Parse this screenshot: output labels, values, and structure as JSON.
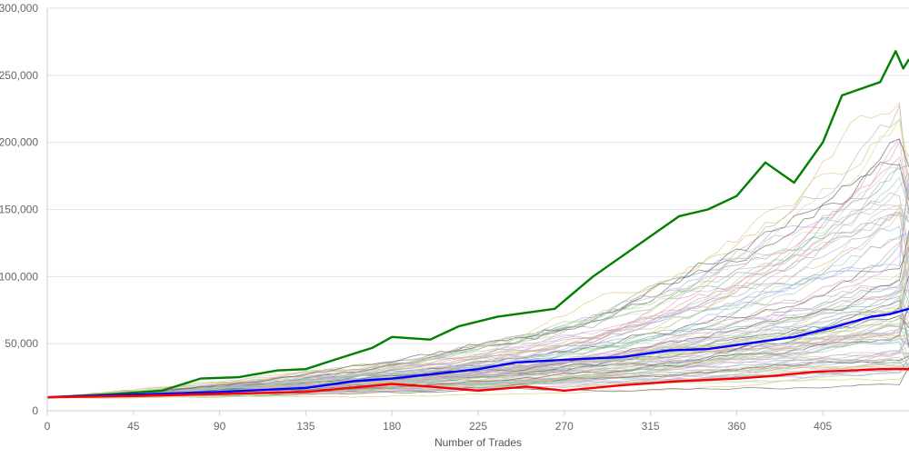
{
  "chart_data": {
    "type": "line",
    "title": "",
    "xlabel": "Number of Trades",
    "ylabel": "",
    "xlim": [
      0,
      450
    ],
    "ylim": [
      0,
      300000
    ],
    "x_ticks": [
      0,
      45,
      90,
      135,
      180,
      225,
      270,
      315,
      360,
      405
    ],
    "x_tick_labels": [
      "0",
      "45",
      "90",
      "135",
      "180",
      "225",
      "270",
      "315",
      "360",
      "405"
    ],
    "y_ticks": [
      0,
      50000,
      100000,
      150000,
      200000,
      250000,
      300000
    ],
    "y_tick_labels": [
      "0",
      "50,000",
      "100,000",
      "150,000",
      "200,000",
      "250,000",
      "300,000"
    ],
    "grid": true,
    "legend": "none",
    "background_paths": {
      "count": 100,
      "start_value": 10000,
      "end_value_range": [
        30000,
        190000
      ],
      "colors": [
        "#b0b0b0",
        "#d9a0d9",
        "#a0d0a0",
        "#a0b0e0",
        "#e0c080",
        "#c0c0c0",
        "#80b0b0",
        "#e0a0a0",
        "#606060",
        "#c8e0a0"
      ]
    },
    "series": [
      {
        "role": "best",
        "color": "#008000",
        "points": [
          [
            0,
            10000
          ],
          [
            30,
            12000
          ],
          [
            60,
            15000
          ],
          [
            80,
            24000
          ],
          [
            100,
            25000
          ],
          [
            120,
            30000
          ],
          [
            135,
            31000
          ],
          [
            150,
            38000
          ],
          [
            170,
            47000
          ],
          [
            180,
            55000
          ],
          [
            200,
            53000
          ],
          [
            215,
            63000
          ],
          [
            235,
            70000
          ],
          [
            265,
            76000
          ],
          [
            285,
            100000
          ],
          [
            300,
            115000
          ],
          [
            315,
            130000
          ],
          [
            330,
            145000
          ],
          [
            345,
            150000
          ],
          [
            360,
            160000
          ],
          [
            375,
            185000
          ],
          [
            390,
            170000
          ],
          [
            405,
            200000
          ],
          [
            415,
            235000
          ],
          [
            425,
            240000
          ],
          [
            435,
            245000
          ],
          [
            443,
            268000
          ],
          [
            447,
            255000
          ],
          [
            450,
            262000
          ]
        ]
      },
      {
        "role": "median",
        "color": "#0000ff",
        "points": [
          [
            0,
            10000
          ],
          [
            45,
            12000
          ],
          [
            90,
            14000
          ],
          [
            135,
            17000
          ],
          [
            160,
            22000
          ],
          [
            180,
            24000
          ],
          [
            200,
            27000
          ],
          [
            225,
            31000
          ],
          [
            245,
            36000
          ],
          [
            270,
            38000
          ],
          [
            300,
            40000
          ],
          [
            325,
            45000
          ],
          [
            345,
            46000
          ],
          [
            365,
            50000
          ],
          [
            390,
            55000
          ],
          [
            410,
            62000
          ],
          [
            430,
            70000
          ],
          [
            440,
            72000
          ],
          [
            450,
            76000
          ]
        ]
      },
      {
        "role": "worst",
        "color": "#ff0000",
        "points": [
          [
            0,
            10000
          ],
          [
            45,
            11000
          ],
          [
            90,
            12500
          ],
          [
            135,
            14000
          ],
          [
            150,
            16000
          ],
          [
            180,
            20000
          ],
          [
            200,
            18000
          ],
          [
            225,
            15000
          ],
          [
            250,
            18000
          ],
          [
            270,
            15000
          ],
          [
            300,
            19000
          ],
          [
            330,
            22000
          ],
          [
            360,
            24000
          ],
          [
            380,
            26000
          ],
          [
            400,
            29000
          ],
          [
            420,
            30000
          ],
          [
            435,
            31000
          ],
          [
            450,
            31000
          ]
        ]
      }
    ]
  }
}
